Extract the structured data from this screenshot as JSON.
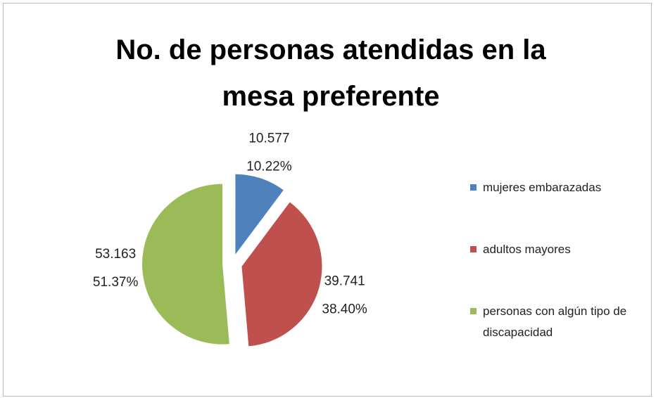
{
  "chart_data": {
    "type": "pie",
    "title": "No. de personas atendidas en la mesa preferente",
    "categories": [
      "mujeres embarazadas",
      "adultos mayores",
      "personas con algún tipo de discapacidad"
    ],
    "values": [
      10.577,
      39.741,
      53.163
    ],
    "percent_labels": [
      "10.22%",
      "38.40%",
      "51.37%"
    ],
    "colors": [
      "#4f81bd",
      "#c0504d",
      "#9bbb59"
    ],
    "legend": "right"
  }
}
